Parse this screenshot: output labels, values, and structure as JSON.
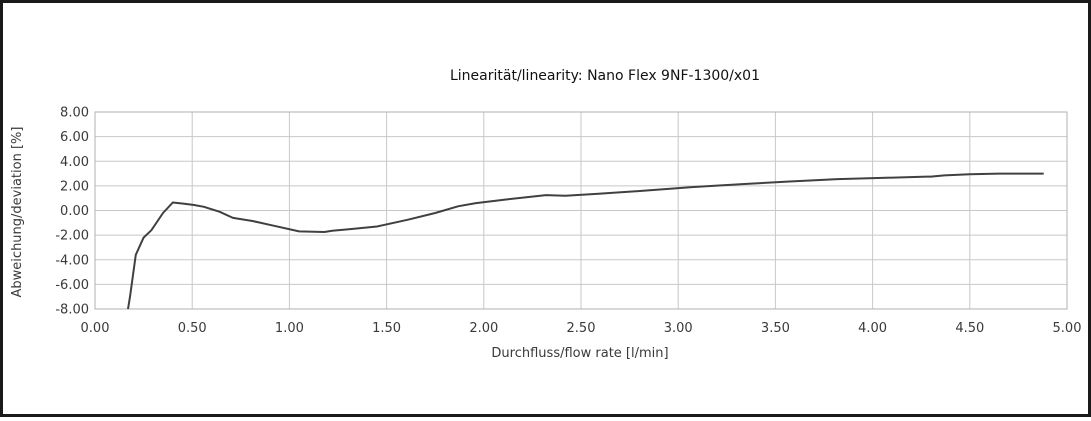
{
  "chart_data": {
    "type": "line",
    "title": "Linearität/linearity: Nano Flex 9NF-1300/x01",
    "xlabel": "Durchfluss/flow rate [l/min]",
    "ylabel": "Abweichung/deviation [%]",
    "xlim": [
      0.0,
      5.0
    ],
    "ylim": [
      -8.0,
      8.0
    ],
    "x_ticks": [
      "0.00",
      "0.50",
      "1.00",
      "1.50",
      "2.00",
      "2.50",
      "3.00",
      "3.50",
      "4.00",
      "4.50",
      "5.00"
    ],
    "y_ticks": [
      "8.00",
      "6.00",
      "4.00",
      "2.00",
      "0.00",
      "-2.00",
      "-4.00",
      "-6.00",
      "-8.00"
    ],
    "x_tick_values": [
      0,
      0.5,
      1,
      1.5,
      2,
      2.5,
      3,
      3.5,
      4,
      4.5,
      5
    ],
    "y_tick_values": [
      8,
      6,
      4,
      2,
      0,
      -2,
      -4,
      -6,
      -8
    ],
    "grid": true,
    "series": [
      {
        "color": "#404040",
        "x": [
          0.17,
          0.18,
          0.21,
          0.25,
          0.29,
          0.35,
          0.4,
          0.46,
          0.51,
          0.56,
          0.64,
          0.71,
          0.81,
          0.91,
          1.05,
          1.18,
          1.22,
          1.32,
          1.45,
          1.61,
          1.75,
          1.87,
          1.96,
          2.12,
          2.32,
          2.42,
          2.58,
          2.82,
          3.07,
          3.34,
          3.56,
          3.82,
          4.05,
          4.28,
          4.3,
          4.37,
          4.5,
          4.65,
          4.88
        ],
        "y": [
          -8.0,
          -7.0,
          -3.6,
          -2.2,
          -1.6,
          -0.2,
          0.65,
          0.55,
          0.45,
          0.3,
          -0.1,
          -0.6,
          -0.85,
          -1.2,
          -1.7,
          -1.75,
          -1.65,
          -1.5,
          -1.3,
          -0.75,
          -0.2,
          0.35,
          0.6,
          0.9,
          1.25,
          1.2,
          1.35,
          1.6,
          1.9,
          2.15,
          2.35,
          2.55,
          2.65,
          2.75,
          2.75,
          2.85,
          2.95,
          3.0,
          3.0
        ]
      }
    ]
  }
}
